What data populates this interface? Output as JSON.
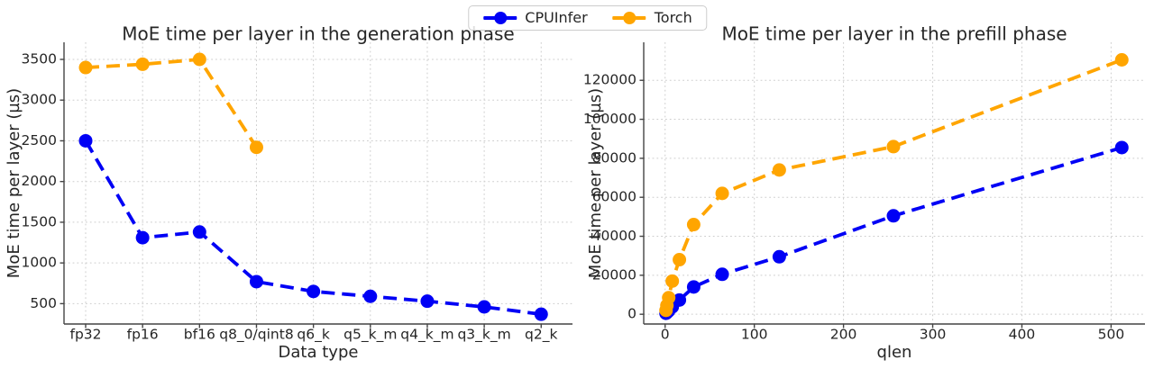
{
  "figure": {
    "background": "#ffffff",
    "text_color": "#262626",
    "axis_color": "#444444",
    "grid_color": "#cdcdcd"
  },
  "legend": {
    "position": "top center",
    "entries": [
      {
        "label": "CPUInfer",
        "color": "#0000f5"
      },
      {
        "label": "Torch",
        "color": "#ffa500"
      }
    ]
  },
  "chart_data": [
    {
      "type": "line",
      "title": "MoE time per layer in the generation phase",
      "xlabel": "Data type",
      "ylabel": "MoE time per layer (µs)",
      "categories": [
        "fp32",
        "fp16",
        "bf16",
        "q8_0/qint8",
        "q6_k",
        "q5_k_m",
        "q4_k_m",
        "q3_k_m",
        "q2_k"
      ],
      "series": [
        {
          "name": "CPUInfer",
          "color": "#0000f5",
          "values": [
            2500,
            1310,
            1380,
            770,
            650,
            590,
            530,
            460,
            370
          ]
        },
        {
          "name": "Torch",
          "color": "#ffa500",
          "values": [
            3400,
            3440,
            3500,
            2420,
            null,
            null,
            null,
            null,
            null
          ]
        }
      ],
      "yticks": [
        500,
        1000,
        1500,
        2000,
        2500,
        3000,
        3500
      ],
      "xlim": [
        -0.38,
        8.55
      ],
      "ylim": [
        250,
        3710
      ],
      "grid": true,
      "line_style": "dashed",
      "marker": "circle"
    },
    {
      "type": "line",
      "title": "MoE time per layer in the prefill phase",
      "xlabel": "qlen",
      "ylabel": "MoE time per layer (µs)",
      "x": [
        1,
        2,
        4,
        8,
        16,
        32,
        64,
        128,
        256,
        512
      ],
      "series": [
        {
          "name": "CPUInfer",
          "color": "#0000f5",
          "values": [
            500,
            900,
            1800,
            3800,
            7300,
            14000,
            20500,
            29500,
            50500,
            85500
          ]
        },
        {
          "name": "Torch",
          "color": "#ffa500",
          "values": [
            2000,
            4500,
            8500,
            17000,
            28000,
            46000,
            62000,
            74000,
            86000,
            130500
          ]
        }
      ],
      "xticks": [
        0,
        100,
        200,
        300,
        400,
        500
      ],
      "yticks": [
        0,
        20000,
        40000,
        60000,
        80000,
        100000,
        120000
      ],
      "xlim": [
        -24,
        538
      ],
      "ylim": [
        -5000,
        139500
      ],
      "grid": true,
      "line_style": "dashed",
      "marker": "circle"
    }
  ]
}
